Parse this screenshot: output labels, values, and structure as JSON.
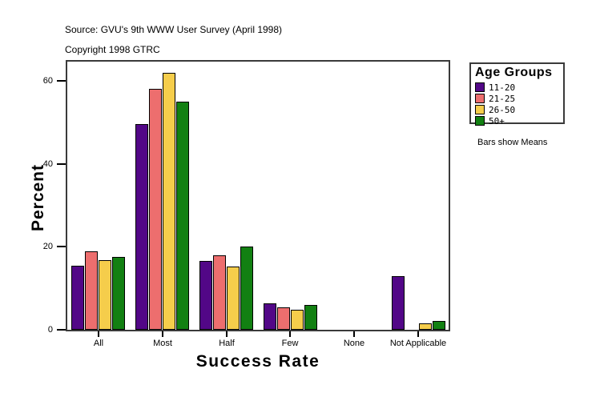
{
  "header": {
    "source_line": "Source: GVU's 9th WWW User Survey (April 1998)",
    "copyright_line": "Copyright 1998 GTRC"
  },
  "chart_data": {
    "type": "bar",
    "title": "",
    "xlabel": "Success Rate",
    "ylabel": "Percent",
    "categories": [
      "All",
      "Most",
      "Half",
      "Few",
      "None",
      "Not Applicable"
    ],
    "series": [
      {
        "name": "11-20",
        "color": "#520787",
        "values": [
          15.5,
          49.5,
          16.5,
          6.3,
          0,
          13.0
        ]
      },
      {
        "name": "21-25",
        "color": "#ED6E6E",
        "values": [
          19.0,
          58.0,
          18.0,
          5.4,
          0,
          0
        ]
      },
      {
        "name": "26-50",
        "color": "#F5CD4B",
        "values": [
          16.7,
          62.0,
          15.3,
          4.8,
          0,
          1.5
        ]
      },
      {
        "name": "50+",
        "color": "#128012",
        "values": [
          17.5,
          55.0,
          20.1,
          5.9,
          0,
          2.1
        ]
      }
    ],
    "ylim": [
      0,
      64.8
    ],
    "yticks": [
      0,
      20,
      40,
      60
    ],
    "grid": false,
    "legend": {
      "title": "Age Groups",
      "position": "right"
    },
    "note": "Bars show Means"
  }
}
